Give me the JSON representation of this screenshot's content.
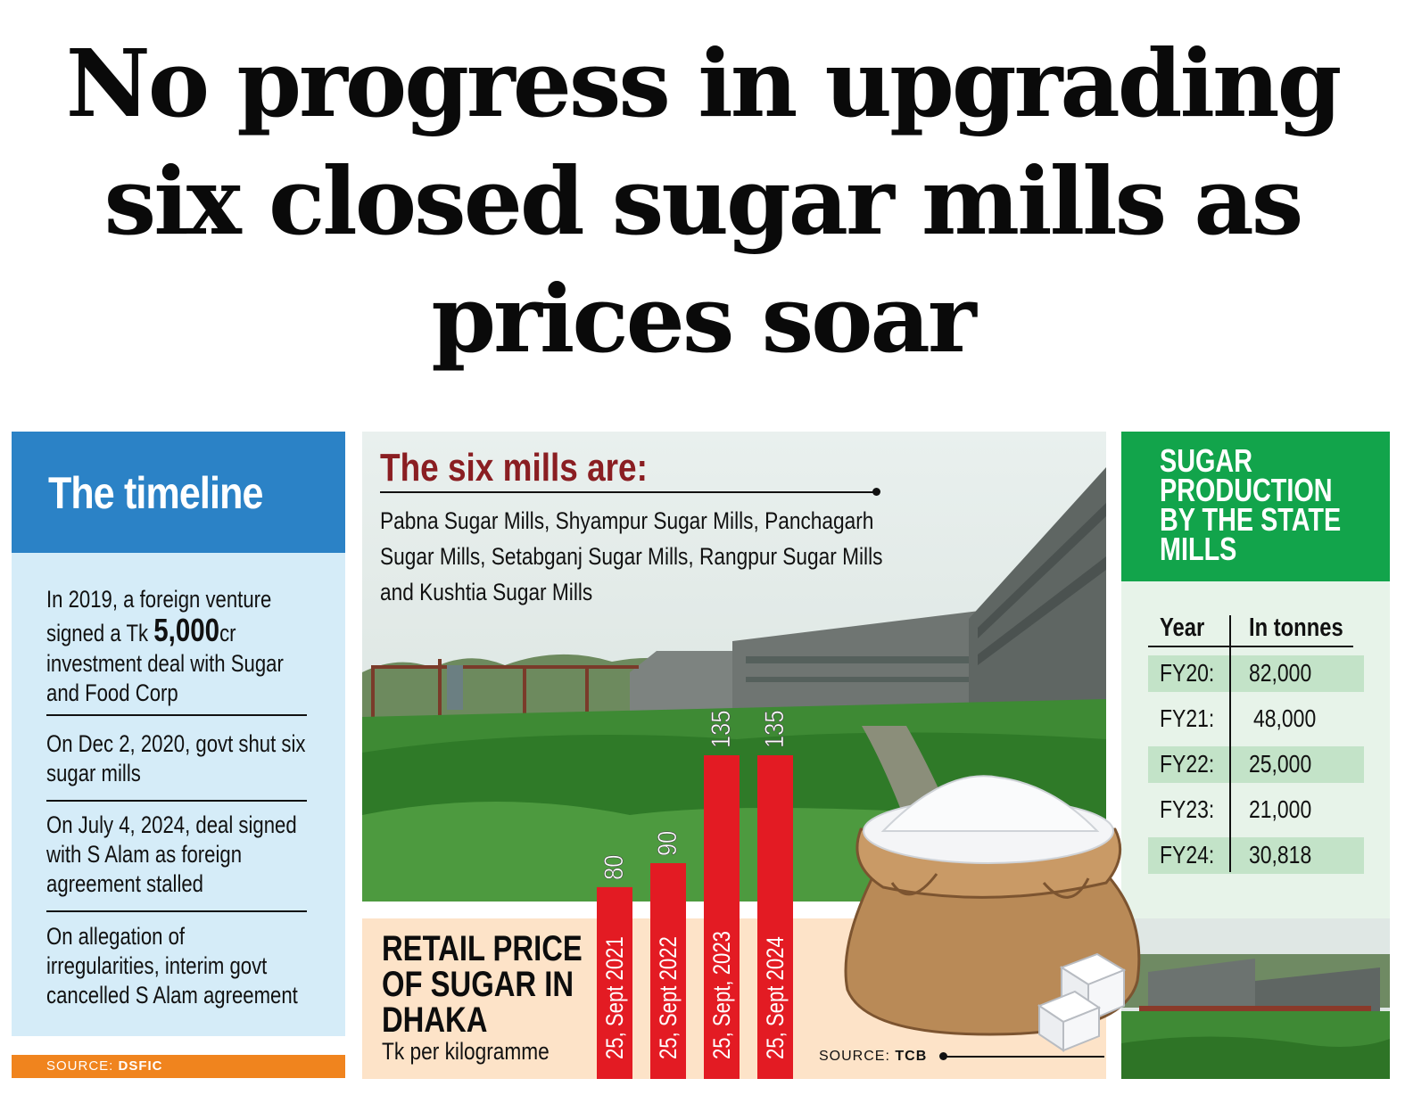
{
  "headline": {
    "line1": "No progress in upgrading",
    "line2": "six closed sugar mills as",
    "line3": "prices soar"
  },
  "timeline": {
    "title": "The timeline",
    "item1_pre": "In 2019, a foreign venture",
    "item1_mid_pre": "signed a Tk ",
    "item1_amount": "5,000",
    "item1_mid_post": "cr",
    "item1_line3": "investment deal with Sugar",
    "item1_line4": "and Food Corp",
    "item2_line1": "On Dec 2, 2020, govt shut six",
    "item2_line2": "sugar mills",
    "item3_line1": "On July 4, 2024, deal signed",
    "item3_line2": "with S Alam as foreign",
    "item3_line3": "agreement stalled",
    "item4_line1": "On allegation of",
    "item4_line2": "irregularities, interim govt",
    "item4_line3": "cancelled S Alam agreement",
    "source_label": "SOURCE:",
    "source_value": "DSFIC"
  },
  "mills": {
    "title": "The six mills are:",
    "line1": "Pabna Sugar Mills, Shyampur Sugar Mills, Panchagarh",
    "line2": "Sugar Mills, Setabganj Sugar Mills, Rangpur Sugar Mills",
    "line3": "and Kushtia Sugar Mills"
  },
  "retail": {
    "title_line1": "RETAIL PRICE",
    "title_line2": "OF SUGAR IN",
    "title_line3": "DHAKA",
    "unit": "Tk per kilogramme",
    "source_label": "SOURCE:",
    "source_value": "TCB"
  },
  "production": {
    "title_line1": "SUGAR",
    "title_line2": "PRODUCTION",
    "title_line3": "BY THE STATE",
    "title_line4": "MILLS",
    "col_year": "Year",
    "col_tonnes": "In tonnes",
    "rows": [
      {
        "year": "FY20:",
        "value": "82,000"
      },
      {
        "year": "FY21:",
        "value": "48,000"
      },
      {
        "year": "FY22:",
        "value": "25,000"
      },
      {
        "year": "FY23:",
        "value": "21,000"
      },
      {
        "year": "FY24:",
        "value": "30,818"
      }
    ]
  },
  "colors": {
    "bar": "#e31b23",
    "timeline_blue": "#2b82c6",
    "production_green": "#12a44b",
    "mills_title": "#8a1e22",
    "source_orange": "#f0841e"
  },
  "chart_data": [
    {
      "type": "bar",
      "categories": [
        "25, Sept 2021",
        "25, Sept 2022",
        "25, Sept, 2023",
        "25, Sept 2024"
      ],
      "values": [
        80,
        90,
        135,
        135
      ],
      "value_labels": [
        "80",
        "90",
        "135",
        "135"
      ],
      "title": "RETAIL PRICE OF SUGAR IN DHAKA",
      "ylabel": "Tk per kilogramme",
      "ylim": [
        0,
        135
      ]
    },
    {
      "type": "table",
      "categories": [
        "FY20",
        "FY21",
        "FY22",
        "FY23",
        "FY24"
      ],
      "values": [
        82000,
        48000,
        25000,
        21000,
        30818
      ],
      "title": "SUGAR PRODUCTION BY THE STATE MILLS",
      "ylabel": "In tonnes"
    }
  ]
}
